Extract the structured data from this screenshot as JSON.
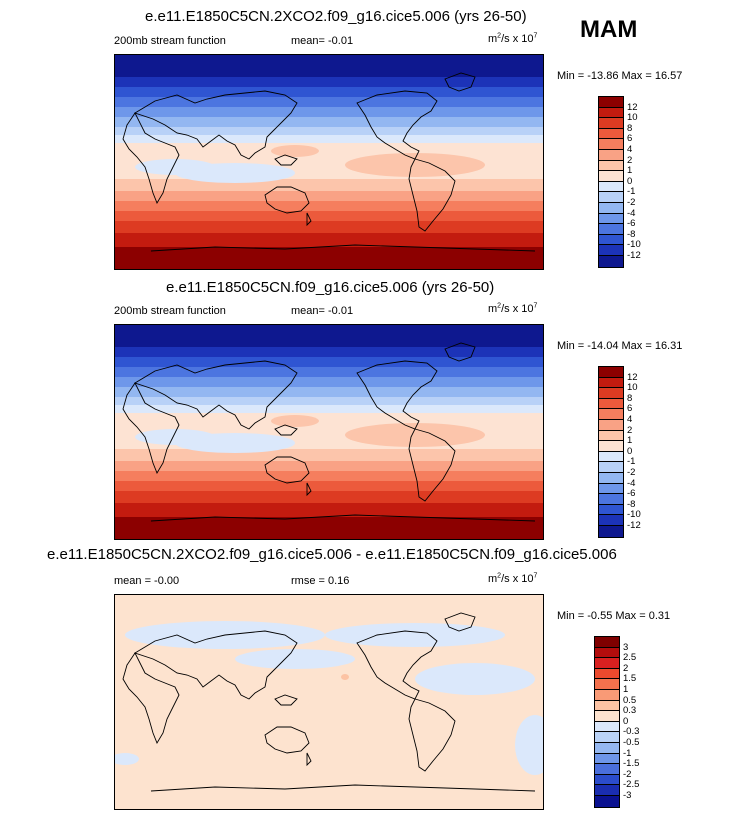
{
  "season": "MAM",
  "colors": {
    "scale_a": [
      "#8c0000",
      "#c31b0f",
      "#dd3b22",
      "#ec5a3c",
      "#f57e5e",
      "#f9a285",
      "#fcc5ab",
      "#fde3d3",
      "#dbe8fb",
      "#b8d1f7",
      "#93b7f1",
      "#6e97ea",
      "#4c75e0",
      "#2f55d2",
      "#1c33b8",
      "#0e188f"
    ],
    "scale_b": [
      "#7f0000",
      "#b30d0d",
      "#d92020",
      "#ec4a2e",
      "#f4714d",
      "#f99a76",
      "#fcc3a4",
      "#fde3cf",
      "#dbe8fb",
      "#bad3f7",
      "#95b8f1",
      "#6e96e9",
      "#4a6fdc",
      "#2b4ccb",
      "#1a2db0",
      "#0a1190"
    ]
  },
  "panels": [
    {
      "title": "e.e11.E1850C5CN.2XCO2.f09_g16.cice5.006 (yrs 26-50)",
      "left_label": "200mb stream function",
      "mean_label": "mean=  -0.01",
      "units": "m",
      "units_sup1": "2",
      "units_mid": "/s x 10",
      "units_sup2": "7",
      "minmax": "Min = -13.86 Max =  16.57"
    },
    {
      "title": "e.e11.E1850C5CN.f09_g16.cice5.006 (yrs 26-50)",
      "left_label": "200mb stream function",
      "mean_label": "mean=  -0.01",
      "units": "m",
      "units_sup1": "2",
      "units_mid": "/s x 10",
      "units_sup2": "7",
      "minmax": "Min = -14.04 Max =  16.31"
    },
    {
      "title": "e.e11.E1850C5CN.2XCO2.f09_g16.cice5.006 - e.e11.E1850C5CN.f09_g16.cice5.006",
      "left_label": "mean =  -0.00",
      "mean_label": "rmse =   0.16",
      "units": "m",
      "units_sup1": "2",
      "units_mid": "/s x 10",
      "units_sup2": "7",
      "minmax": "Min =  -0.55 Max =   0.31"
    }
  ],
  "chart_data": [
    {
      "type": "heatmap",
      "title": "e.e11.E1850C5CN.2XCO2.f09_g16.cice5.006 (yrs 26-50)",
      "variable": "200mb stream function",
      "mean": -0.01,
      "units": "m2/s x 10^7",
      "min": -13.86,
      "max": 16.57,
      "colorbar_levels": [
        "12",
        "10",
        "8",
        "6",
        "4",
        "2",
        "1",
        "0",
        "-1",
        "-2",
        "-4",
        "-6",
        "-8",
        "-10",
        "-12"
      ]
    },
    {
      "type": "heatmap",
      "title": "e.e11.E1850C5CN.f09_g16.cice5.006 (yrs 26-50)",
      "variable": "200mb stream function",
      "mean": -0.01,
      "units": "m2/s x 10^7",
      "min": -14.04,
      "max": 16.31,
      "colorbar_levels": [
        "12",
        "10",
        "8",
        "6",
        "4",
        "2",
        "1",
        "0",
        "-1",
        "-2",
        "-4",
        "-6",
        "-8",
        "-10",
        "-12"
      ]
    },
    {
      "type": "heatmap",
      "title": "e.e11.E1850C5CN.2XCO2.f09_g16.cice5.006 - e.e11.E1850C5CN.f09_g16.cice5.006",
      "mean": -0.0,
      "rmse": 0.16,
      "units": "m2/s x 10^7",
      "min": -0.55,
      "max": 0.31,
      "colorbar_levels": [
        "3",
        "2.5",
        "2",
        "1.5",
        "1",
        "0.5",
        "0.3",
        "0",
        "-0.3",
        "-0.5",
        "-1",
        "-1.5",
        "-2",
        "-2.5",
        "-3"
      ]
    }
  ]
}
